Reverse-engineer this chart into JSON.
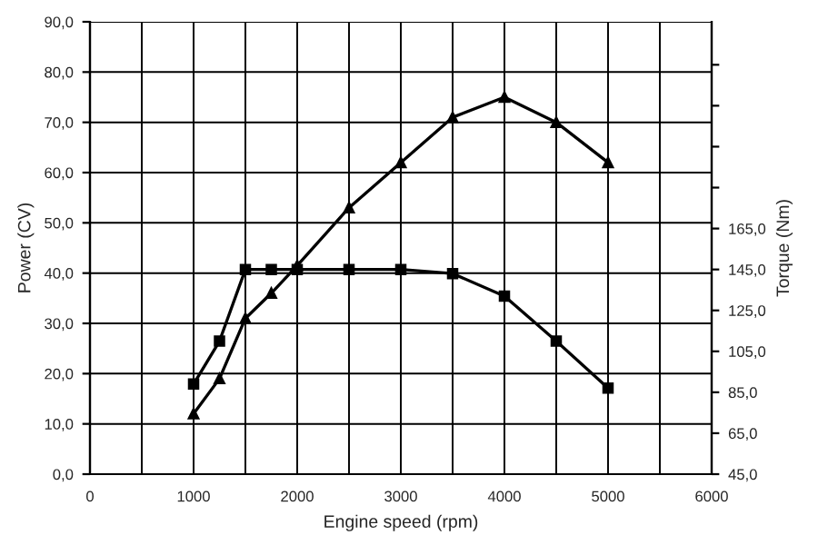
{
  "chart_data": {
    "type": "line",
    "xlabel": "Engine speed (rpm)",
    "ylabel": "Power (CV)",
    "y2label": "Torque (Nm)",
    "grid": true,
    "xlim": [
      0,
      6000
    ],
    "xticks": [
      0,
      {
        "value": 500,
        "label": null
      },
      1000,
      {
        "value": 1500,
        "label": null
      },
      2000,
      {
        "value": 2500,
        "label": null
      },
      3000,
      {
        "value": 3500,
        "label": null
      },
      4000,
      {
        "value": 4500,
        "label": null
      },
      5000,
      {
        "value": 5500,
        "label": null
      },
      6000
    ],
    "ylim": [
      0,
      90
    ],
    "yticks": [
      {
        "value": 0,
        "label": "0,0"
      },
      {
        "value": 10,
        "label": "10,0"
      },
      {
        "value": 20,
        "label": "20,0"
      },
      {
        "value": 30,
        "label": "30,0"
      },
      {
        "value": 40,
        "label": "40,0"
      },
      {
        "value": 50,
        "label": "50,0"
      },
      {
        "value": 60,
        "label": "60,0"
      },
      {
        "value": 70,
        "label": "70,0"
      },
      {
        "value": 80,
        "label": "80,0"
      },
      {
        "value": 90,
        "label": "90,0"
      }
    ],
    "y2lim": [
      45,
      266
    ],
    "y2ticks": [
      {
        "value": 45,
        "label": "45,0"
      },
      {
        "value": 65,
        "label": "65,0"
      },
      {
        "value": 85,
        "label": "85,0"
      },
      {
        "value": 105,
        "label": "105,0"
      },
      {
        "value": 125,
        "label": "125,0"
      },
      {
        "value": 145,
        "label": "145,0"
      },
      {
        "value": 165,
        "label": "165,0"
      },
      {
        "value": 185,
        "label": null
      },
      {
        "value": 205,
        "label": null
      },
      {
        "value": 225,
        "label": null
      },
      {
        "value": 245,
        "label": null
      }
    ],
    "series": [
      {
        "color": "#000000",
        "marker": "triangle",
        "x": [
          1000,
          1250,
          1500,
          1750,
          2000,
          2500,
          3000,
          3500,
          4000,
          4500,
          5000
        ],
        "values": [
          12,
          19,
          31,
          36,
          41.5,
          53,
          62,
          71,
          75,
          70,
          62
        ]
      },
      {
        "color": "#000000",
        "marker": "square",
        "axis": "y2",
        "x": [
          1000,
          1250,
          1500,
          1750,
          2000,
          2500,
          3000,
          3500,
          4000,
          4500,
          5000
        ],
        "values": [
          89,
          110,
          145,
          145,
          145,
          145,
          145,
          143,
          132,
          110,
          87
        ]
      }
    ]
  }
}
